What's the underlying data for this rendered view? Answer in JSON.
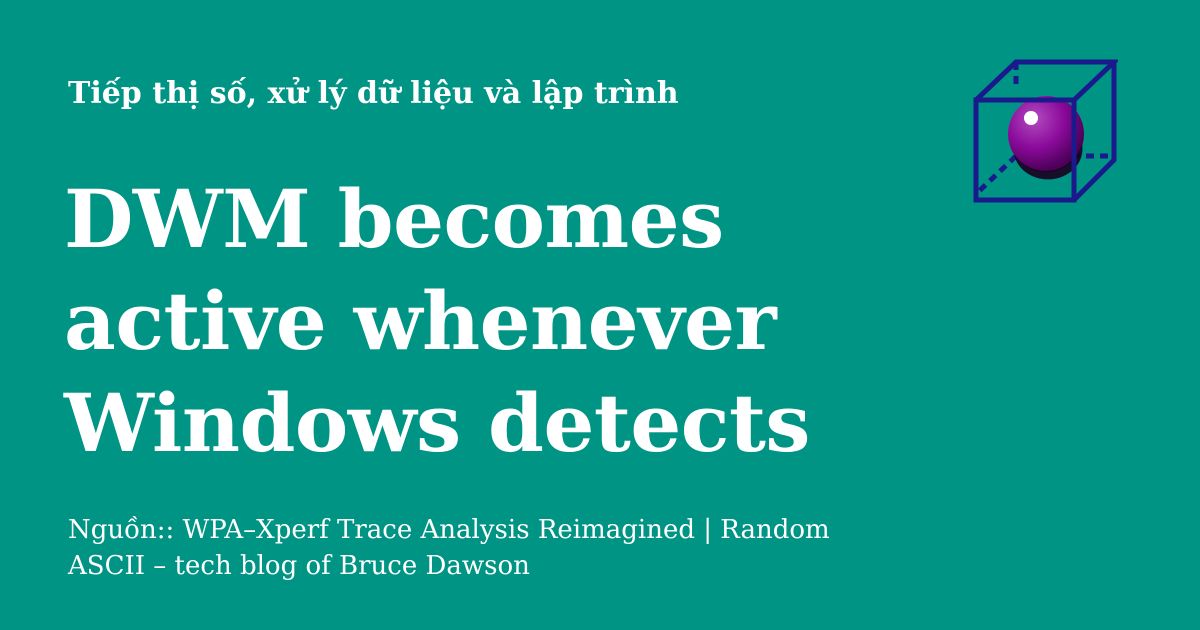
{
  "card": {
    "background": "#009484",
    "text_color": "#ffffff",
    "subtitle": "Tiếp thị số, xử lý dữ liệu và lập trình",
    "title_lines": [
      "DWM becomes",
      "active whenever",
      "Windows detects"
    ],
    "source_lines": [
      "Nguồn:: WPA–Xperf Trace Analysis Reimagined | Random",
      "ASCII – tech blog of Bruce Dawson"
    ]
  },
  "logo": {
    "icon": "cube-with-sphere-icon",
    "cube_color": "#1a1a8c",
    "sphere_color": "#8a0a9a"
  }
}
